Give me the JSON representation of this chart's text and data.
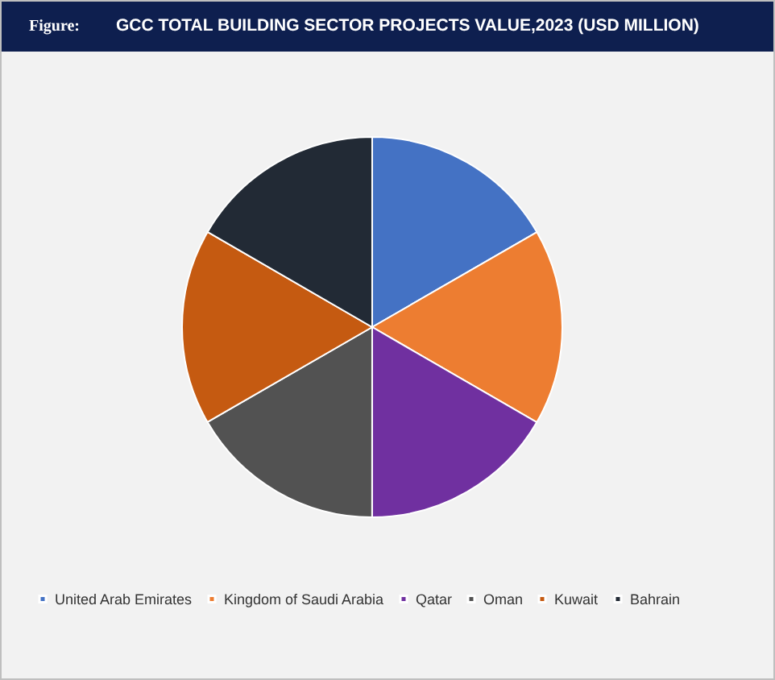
{
  "chart_data": {
    "type": "pie",
    "title": "GCC TOTAL BUILDING SECTOR PROJECTS VALUE,2023 (USD MILLION)",
    "annotations": [
      "Figure:"
    ],
    "categories": [
      "United Arab Emirates",
      "Kingdom of Saudi Arabia",
      "Qatar",
      "Oman",
      "Kuwait",
      "Bahrain"
    ],
    "values": [
      16.67,
      16.67,
      16.67,
      16.67,
      16.66,
      16.66
    ],
    "colors": [
      "#4472c4",
      "#ed7d31",
      "#7030a0",
      "#525252",
      "#c55a11",
      "#222a35"
    ],
    "legend": "bottom"
  }
}
